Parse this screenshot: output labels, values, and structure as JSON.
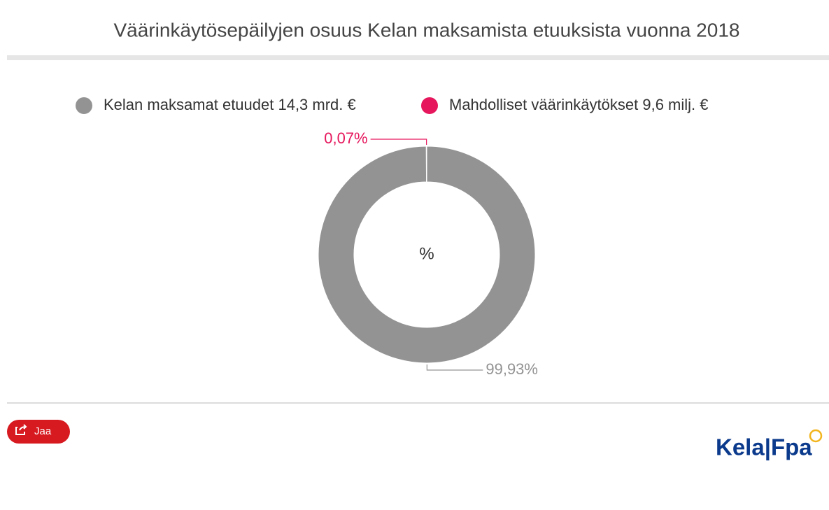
{
  "chart_data": {
    "type": "pie",
    "donut": true,
    "title": "Väärinkäytösepäilyjen osuus Kelan maksamista etuuksista vuonna 2018",
    "categories": [
      "Kelan maksamat etuudet 14,3 mrd. €",
      "Mahdolliset väärinkäytökset 9,6 milj. €"
    ],
    "values": [
      99.93,
      0.07
    ],
    "value_labels": [
      "99,93%",
      "0,07%"
    ],
    "colors": [
      "#939393",
      "#e6175c"
    ],
    "center_label": "%"
  },
  "share_button": "Jaa",
  "logo": "Kela|Fpa"
}
